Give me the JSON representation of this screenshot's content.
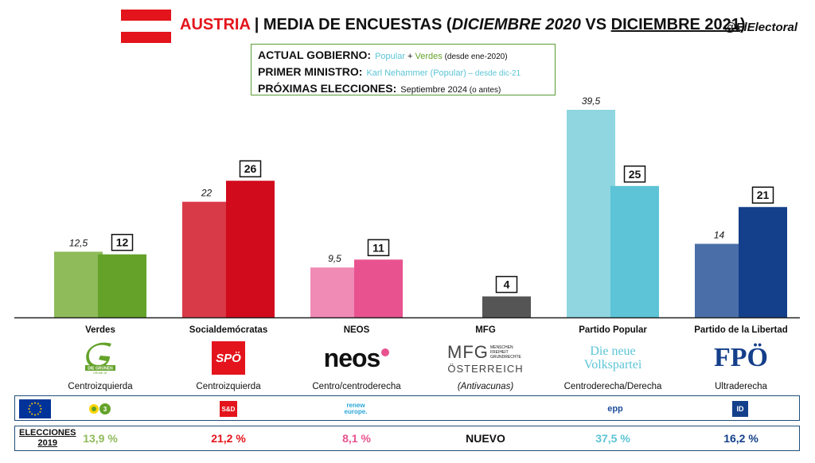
{
  "header": {
    "country": "AUSTRIA",
    "separator": " | ",
    "title_main": "MEDIA DE ENCUESTAS (",
    "title_d1": "DICIEMBRE 2020",
    "title_vs": " VS ",
    "title_d2": "DICIEMBRE 2021",
    "title_end": ")",
    "handle": "@ElElectoral",
    "flag_colors": [
      "#e3141b",
      "#ffffff",
      "#e3141b"
    ]
  },
  "info": {
    "gov_label": "ACTUAL GOBIERNO:",
    "gov_p1": "Popular",
    "gov_plus": " + ",
    "gov_p2": "Verdes",
    "gov_since": " (desde ene-2020)",
    "pm_label": "PRIMER MINISTRO:",
    "pm_name": "Karl Nehammer (Popular)",
    "pm_since": " – desde dic-21",
    "next_label": "PRÓXIMAS ELECCIONES:",
    "next_date": "Septiembre 2024",
    "next_note": " (o antes)"
  },
  "chart_data": {
    "type": "bar",
    "categories": [
      "Verdes",
      "Socialdemócratas",
      "NEOS",
      "MFG",
      "Partido Popular",
      "Partido de la Libertad"
    ],
    "series": [
      {
        "values": [
          12.5,
          22,
          9.5,
          null,
          39.5,
          14
        ],
        "labels": [
          "12,5",
          "22",
          "9,5",
          "",
          "39,5",
          "14"
        ]
      },
      {
        "values": [
          12,
          26,
          11,
          4,
          25,
          21
        ],
        "labels": [
          "12",
          "26",
          "11",
          "4",
          "25",
          "21"
        ]
      }
    ],
    "colors_2020": [
      "#8fbb5a",
      "#d93a48",
      "#f08bb5",
      "#555555",
      "#8fd6e0",
      "#4a6fa8"
    ],
    "colors_2021": [
      "#64a22a",
      "#d10a1c",
      "#e8538f",
      "#555555",
      "#5cc4d6",
      "#143f8a"
    ],
    "ylim": [
      0,
      40
    ]
  },
  "parties": [
    {
      "name": "Verdes",
      "ideology": "Centroizquierda",
      "logo": "DIE GRÜNEN",
      "logo_sub": "GRÜNE.AT",
      "eu_group": "Verdes/ALE",
      "result_2019": "13,9 %",
      "color": "#8fbb5a"
    },
    {
      "name": "Socialdemócratas",
      "ideology": "Centroizquierda",
      "logo": "SPÖ",
      "eu_group": "S&D",
      "result_2019": "21,2 %",
      "color": "#e3141b"
    },
    {
      "name": "NEOS",
      "ideology": "Centro/centroderecha",
      "logo": "neos",
      "eu_group": "renew europe.",
      "result_2019": "8,1 %",
      "color": "#e8538f"
    },
    {
      "name": "MFG",
      "ideology": "(Antivacunas)",
      "logo": "MFG",
      "logo_side": "MENSCHEN FREIHEIT GRUNDRECHTE",
      "logo_sub": "ÖSTERREICH",
      "eu_group": "",
      "result_2019": "NUEVO",
      "color": "#111111"
    },
    {
      "name": "Partido Popular",
      "ideology": "Centroderecha/Derecha",
      "logo": "Die neue",
      "logo_sub": "Volkspartei",
      "eu_group": "epp",
      "result_2019": "37,5 %",
      "color": "#5cc4d6"
    },
    {
      "name": "Partido de la Libertad",
      "ideology": "Ultraderecha",
      "logo": "FPÖ",
      "eu_group": "ID",
      "result_2019": "16,2 %",
      "color": "#143f8a"
    }
  ],
  "elections": {
    "label1": "ELECCIONES",
    "label2": "2019"
  }
}
